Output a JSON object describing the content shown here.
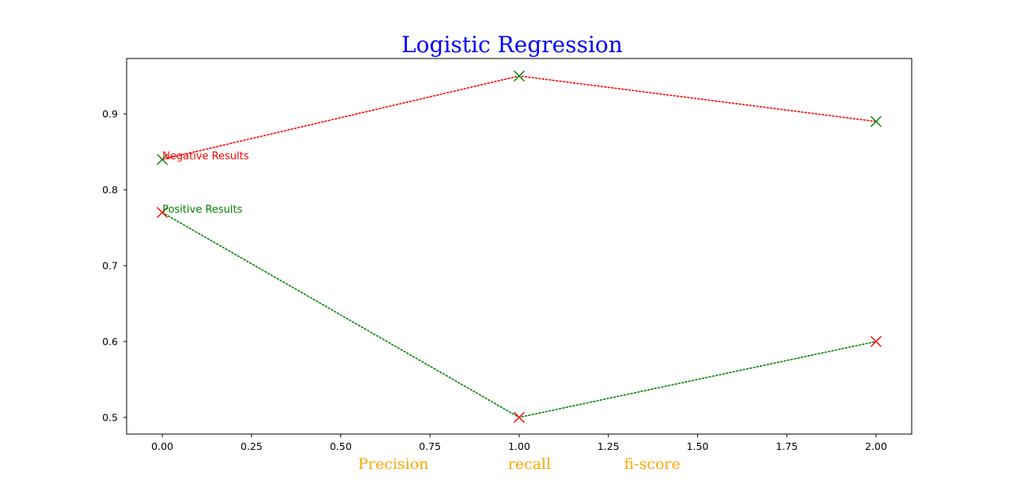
{
  "chart_data": {
    "type": "line",
    "title": "Logistic Regression",
    "title_color": "#0000ff",
    "xlabel_parts": [
      "Precision",
      "recall",
      "fi-score"
    ],
    "xlabel_color": "#ffa500",
    "xlim": [
      -0.1,
      2.1
    ],
    "ylim": [
      0.478,
      0.973
    ],
    "xticks": [
      0.0,
      0.25,
      0.5,
      0.75,
      1.0,
      1.25,
      1.5,
      1.75,
      2.0
    ],
    "xtick_labels": [
      "0.00",
      "0.25",
      "0.50",
      "0.75",
      "1.00",
      "1.25",
      "1.50",
      "1.75",
      "2.00"
    ],
    "yticks": [
      0.5,
      0.6,
      0.7,
      0.8,
      0.9
    ],
    "ytick_labels": [
      "0.5",
      "0.6",
      "0.7",
      "0.8",
      "0.9"
    ],
    "grid": false,
    "x": [
      0,
      1,
      2
    ],
    "series": [
      {
        "name": "Negative Results",
        "values": [
          0.84,
          0.95,
          0.89
        ],
        "line_color": "#ff0000",
        "marker_color": "#008000",
        "line_style": "dotted",
        "marker": "x",
        "label_at": [
          0,
          0.84
        ]
      },
      {
        "name": "Positive Results",
        "values": [
          0.77,
          0.5,
          0.6
        ],
        "line_color": "#008000",
        "marker_color": "#ff0000",
        "line_style": "dotted",
        "marker": "x",
        "label_at": [
          0,
          0.77
        ]
      }
    ]
  }
}
